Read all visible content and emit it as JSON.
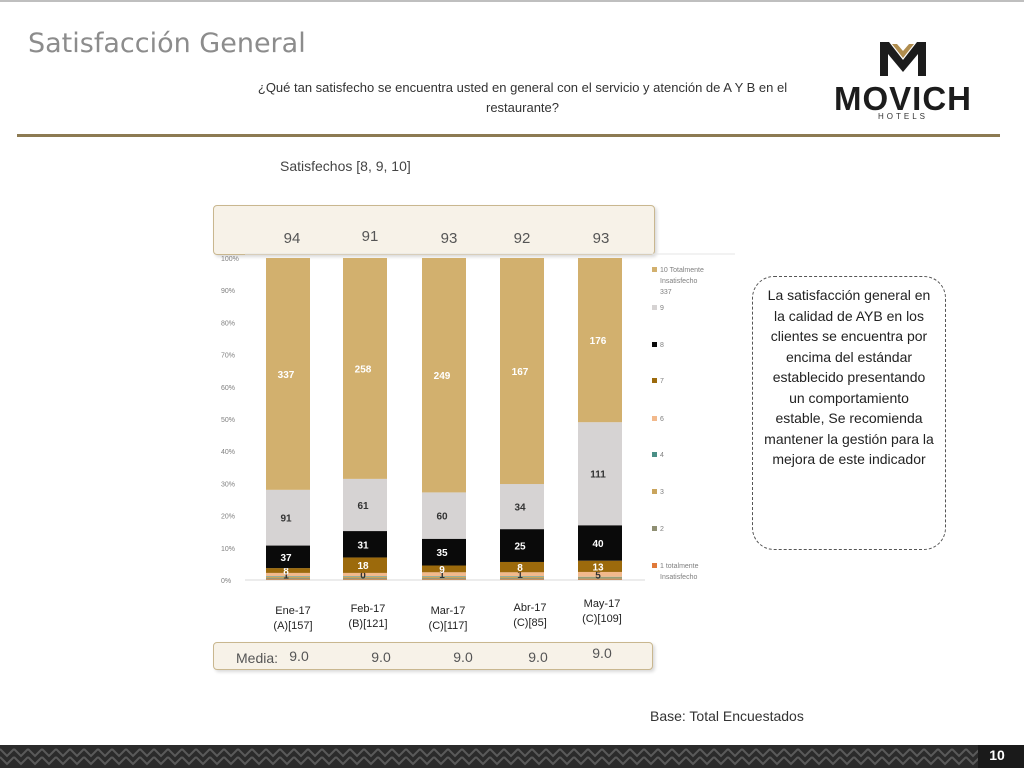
{
  "header": {
    "title": "Satisfacción General",
    "question": "¿Qué tan satisfecho se encuentra usted en general con el servicio y atención de A Y B en el restaurante?",
    "brand": "MOVICH",
    "brand_sub": "HOTELS"
  },
  "satisfechos_label": "Satisfechos [8, 9, 10]",
  "satisfechos_values": [
    "94",
    "91",
    "93",
    "92",
    "93"
  ],
  "media_label": "Media:",
  "media_values": [
    "9.0",
    "9.0",
    "9.0",
    "9.0",
    "9.0"
  ],
  "note": "La satisfacción general en la calidad de AYB en los clientes se encuentra  por encima del estándar establecido presentando un comportamiento estable, Se recomienda mantener la gestión para la mejora de este indicador",
  "base": "Base: Total Encuestados",
  "page_number": "10",
  "colors": {
    "gold": "#d2b06e",
    "grey": "#d6d3d3",
    "black": "#0a0a0a",
    "brown": "#9c6a0c",
    "peach": "#f2b98c",
    "teal": "#4a8f86",
    "olive": "#8f8f73",
    "orange": "#e07a3a",
    "brand_gold": "#8c7a52"
  },
  "chart_data": {
    "type": "bar",
    "stacked": true,
    "percent": true,
    "categories": [
      "Ene-17",
      "Feb-17",
      "Mar-17",
      "Abr-17",
      "May-17"
    ],
    "category_bases": [
      "(A)[157]",
      "(B)[121]",
      "(C)[117]",
      "(C)[85]",
      "(C)[109]"
    ],
    "ylim": [
      0,
      100
    ],
    "yticks": [
      "0%",
      "10%",
      "20%",
      "30%",
      "40%",
      "50%",
      "60%",
      "70%",
      "80%",
      "90%",
      "100%"
    ],
    "series": [
      {
        "name": "1 totalmente Insatisfecho",
        "legend": [
          "1 totalmente",
          "Insatisfecho"
        ],
        "color": "#e07a3a",
        "pct": [
          0.2,
          0.2,
          0.2,
          0.2,
          0.2
        ],
        "labels": [
          "",
          "",
          "",
          "",
          ""
        ]
      },
      {
        "name": "2",
        "legend": [
          "2"
        ],
        "color": "#8f8f73",
        "pct": [
          0.4,
          0.4,
          0.4,
          0.4,
          0.3
        ],
        "labels": [
          "",
          "",
          "",
          "",
          ""
        ]
      },
      {
        "name": "3",
        "legend": [
          "3"
        ],
        "color": "#c9a45c",
        "pct": [
          0.4,
          0.4,
          0.4,
          0.4,
          0.3
        ],
        "labels": [
          "",
          "",
          "",
          "",
          ""
        ]
      },
      {
        "name": "4",
        "legend": [
          "4"
        ],
        "color": "#4a8f86",
        "pct": [
          0.2,
          0.2,
          0.2,
          0.2,
          0.2
        ],
        "labels": [
          "",
          "",
          "",
          "",
          ""
        ]
      },
      {
        "name": "6",
        "legend": [
          "6"
        ],
        "color": "#f2b98c",
        "pct": [
          1.0,
          1.0,
          1.2,
          1.2,
          1.5
        ],
        "labels": [
          "1",
          "0",
          "1",
          "1",
          "5"
        ]
      },
      {
        "name": "7",
        "legend": [
          "7"
        ],
        "color": "#9c6a0c",
        "pct": [
          1.5,
          4.8,
          2.1,
          3.2,
          3.5
        ],
        "labels": [
          "8",
          "18",
          "9",
          "8",
          "13"
        ]
      },
      {
        "name": "8",
        "legend": [
          "8"
        ],
        "color": "#0a0a0a",
        "pct": [
          7.0,
          8.2,
          8.3,
          10.2,
          11.0
        ],
        "labels": [
          "37",
          "31",
          "35",
          "25",
          "40"
        ]
      },
      {
        "name": "9",
        "legend": [
          "9"
        ],
        "color": "#d6d3d3",
        "pct": [
          17.3,
          16.2,
          14.4,
          14.0,
          32.0
        ],
        "labels": [
          "91",
          "61",
          "60",
          "34",
          "111"
        ]
      },
      {
        "name": "10 Totalmente Insatisfecho",
        "legend": [
          "10 Totalmente",
          "Insatisfecho",
          "337"
        ],
        "color": "#d2b06e",
        "pct": [
          72.0,
          68.6,
          72.8,
          70.2,
          51.0
        ],
        "labels": [
          "337",
          "258",
          "249",
          "167",
          "176"
        ]
      }
    ]
  }
}
